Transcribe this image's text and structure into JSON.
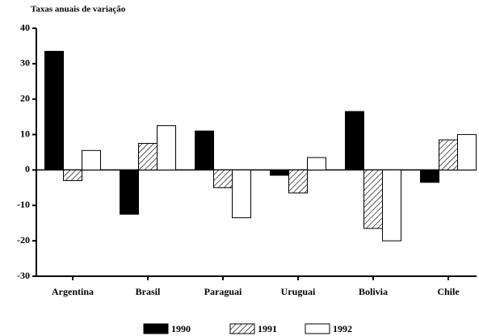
{
  "chart_data": {
    "type": "bar",
    "title": "Taxas anuais de variação",
    "categories": [
      "Argentina",
      "Brasil",
      "Paraguai",
      "Uruguai",
      "Bolivia",
      "Chile"
    ],
    "series": [
      {
        "name": "1990",
        "color": "#000000",
        "pattern": "solid",
        "values": [
          33.5,
          -12.5,
          11,
          -1.5,
          16.5,
          -3.5
        ]
      },
      {
        "name": "1991",
        "color": "#000000",
        "pattern": "hatch",
        "values": [
          -3,
          7.5,
          -5,
          -6.5,
          -16.5,
          8.5
        ]
      },
      {
        "name": "1992",
        "color": "#ffffff",
        "pattern": "solid",
        "values": [
          5.5,
          12.5,
          -13.5,
          3.5,
          -20,
          10
        ]
      }
    ],
    "ylim": [
      -30,
      40
    ],
    "yticks": [
      -30,
      -20,
      -10,
      0,
      10,
      20,
      30,
      40
    ],
    "grid": false,
    "legend": "bottom"
  }
}
